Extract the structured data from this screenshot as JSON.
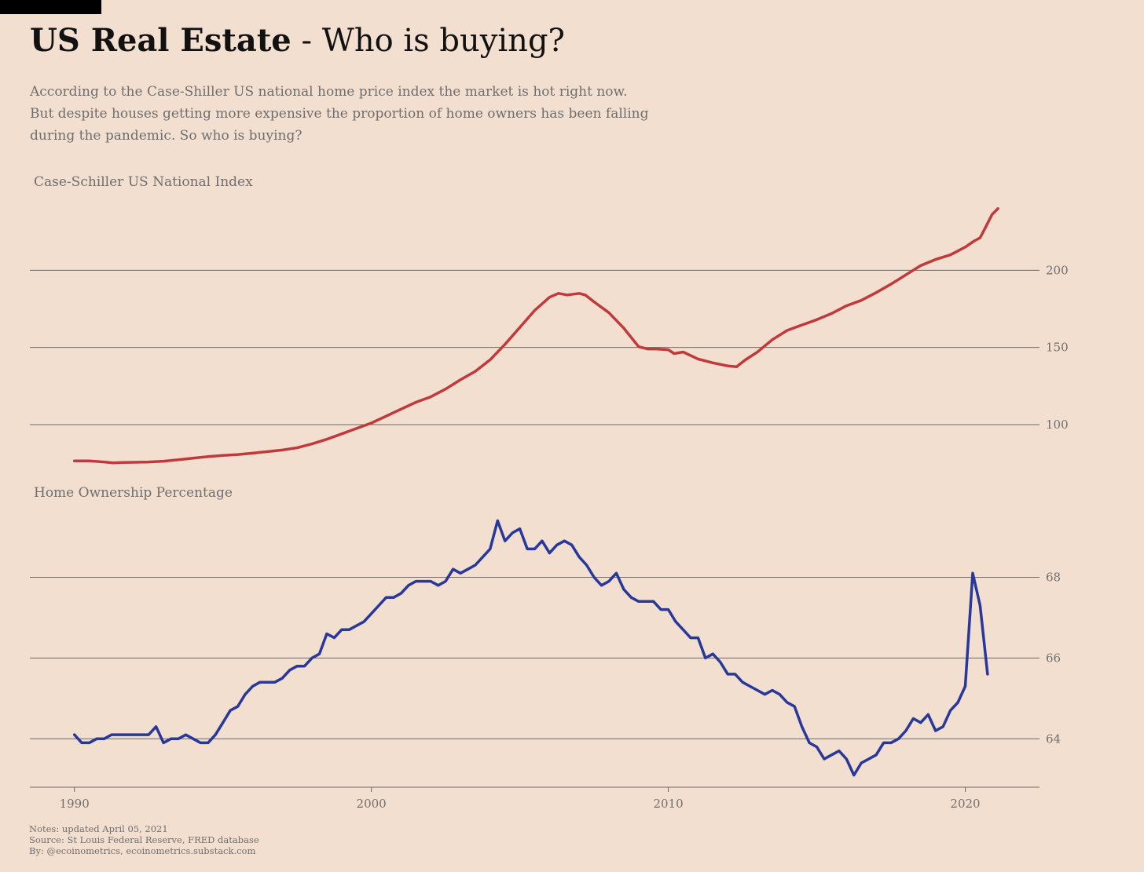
{
  "header": {
    "title_bold": "US Real Estate",
    "title_rest": " - Who is buying?",
    "subtitle_lines": [
      "According to the Case-Shiller US national home price index the market is hot right now.",
      "But despite houses getting more expensive the proportion of home owners has been falling",
      "during the pandemic. So who is buying?"
    ]
  },
  "chart_data": [
    {
      "type": "line",
      "title": "Case-Schiller US National Index",
      "xlim": [
        1988.5,
        2022.5
      ],
      "ylim": [
        71,
        250
      ],
      "yticks": [
        100,
        150,
        200
      ],
      "grid": true,
      "color": "#c0393b",
      "series": [
        {
          "x": [
            1990.0,
            1990.5,
            1991.0,
            1991.3,
            1991.6,
            1992.0,
            1992.5,
            1993.0,
            1993.5,
            1994.0,
            1994.5,
            1995.0,
            1995.5,
            1996.0,
            1996.5,
            1997.0,
            1997.5,
            1998.0,
            1998.5,
            1999.0,
            1999.5,
            2000.0,
            2000.5,
            2001.0,
            2001.5,
            2002.0,
            2002.5,
            2003.0,
            2003.5,
            2004.0,
            2004.5,
            2005.0,
            2005.5,
            2006.0,
            2006.3,
            2006.6,
            2007.0,
            2007.2,
            2007.5,
            2008.0,
            2008.5,
            2009.0,
            2009.3,
            2009.6,
            2010.0,
            2010.2,
            2010.5,
            2011.0,
            2011.5,
            2012.0,
            2012.3,
            2012.6,
            2013.0,
            2013.5,
            2014.0,
            2014.5,
            2015.0,
            2015.5,
            2016.0,
            2016.5,
            2017.0,
            2017.5,
            2018.0,
            2018.5,
            2019.0,
            2019.5,
            2020.0,
            2020.3,
            2020.5,
            2020.7,
            2020.9,
            2021.1
          ],
          "y": [
            76.5,
            76.5,
            75.8,
            75.2,
            75.5,
            75.6,
            75.8,
            76.3,
            77.2,
            78.2,
            79.3,
            80.0,
            80.6,
            81.5,
            82.5,
            83.5,
            85.0,
            87.5,
            90.5,
            94.0,
            97.5,
            101.0,
            105.5,
            110.0,
            114.5,
            118.0,
            123.0,
            129.0,
            134.5,
            142.0,
            152.0,
            163.0,
            174.0,
            182.5,
            185.0,
            184.0,
            185.0,
            184.0,
            179.5,
            172.5,
            162.5,
            150.5,
            149.0,
            149.0,
            148.5,
            146.0,
            147.0,
            142.5,
            140.0,
            138.0,
            137.5,
            142.0,
            147.0,
            155.0,
            161.0,
            164.5,
            168.0,
            172.0,
            177.0,
            180.5,
            185.5,
            191.0,
            197.0,
            203.0,
            207.0,
            210.0,
            215.0,
            219.0,
            221.0,
            228.5,
            236.0,
            240.0
          ]
        }
      ]
    },
    {
      "type": "line",
      "title": "Home Ownership Percentage",
      "xlim": [
        1988.5,
        2022.5
      ],
      "ylim": [
        62.8,
        69.7
      ],
      "yticks": [
        64,
        66,
        68
      ],
      "xticks": [
        1990,
        2000,
        2010,
        2020
      ],
      "grid": true,
      "color": "#28389a",
      "series": [
        {
          "x": [
            1990.0,
            1990.25,
            1990.5,
            1990.75,
            1991.0,
            1991.25,
            1991.5,
            1991.75,
            1992.0,
            1992.25,
            1992.5,
            1992.75,
            1993.0,
            1993.25,
            1993.5,
            1993.75,
            1994.0,
            1994.25,
            1994.5,
            1994.75,
            1995.0,
            1995.25,
            1995.5,
            1995.75,
            1996.0,
            1996.25,
            1996.5,
            1996.75,
            1997.0,
            1997.25,
            1997.5,
            1997.75,
            1998.0,
            1998.25,
            1998.5,
            1998.75,
            1999.0,
            1999.25,
            1999.5,
            1999.75,
            2000.0,
            2000.25,
            2000.5,
            2000.75,
            2001.0,
            2001.25,
            2001.5,
            2001.75,
            2002.0,
            2002.25,
            2002.5,
            2002.75,
            2003.0,
            2003.25,
            2003.5,
            2003.75,
            2004.0,
            2004.25,
            2004.5,
            2004.75,
            2005.0,
            2005.25,
            2005.5,
            2005.75,
            2006.0,
            2006.25,
            2006.5,
            2006.75,
            2007.0,
            2007.25,
            2007.5,
            2007.75,
            2008.0,
            2008.25,
            2008.5,
            2008.75,
            2009.0,
            2009.25,
            2009.5,
            2009.75,
            2010.0,
            2010.25,
            2010.5,
            2010.75,
            2011.0,
            2011.25,
            2011.5,
            2011.75,
            2012.0,
            2012.25,
            2012.5,
            2012.75,
            2013.0,
            2013.25,
            2013.5,
            2013.75,
            2014.0,
            2014.25,
            2014.5,
            2014.75,
            2015.0,
            2015.25,
            2015.5,
            2015.75,
            2016.0,
            2016.25,
            2016.5,
            2016.75,
            2017.0,
            2017.25,
            2017.5,
            2017.75,
            2018.0,
            2018.25,
            2018.5,
            2018.75,
            2019.0,
            2019.25,
            2019.5,
            2019.75,
            2020.0,
            2020.25,
            2020.5,
            2020.75
          ],
          "y": [
            64.1,
            63.9,
            63.9,
            64.0,
            64.0,
            64.1,
            64.1,
            64.1,
            64.1,
            64.1,
            64.1,
            64.3,
            63.9,
            64.0,
            64.0,
            64.1,
            64.0,
            63.9,
            63.9,
            64.1,
            64.4,
            64.7,
            64.8,
            65.1,
            65.3,
            65.4,
            65.4,
            65.4,
            65.5,
            65.7,
            65.8,
            65.8,
            66.0,
            66.1,
            66.6,
            66.5,
            66.7,
            66.7,
            66.8,
            66.9,
            67.1,
            67.3,
            67.5,
            67.5,
            67.6,
            67.8,
            67.9,
            67.9,
            67.9,
            67.8,
            67.9,
            68.2,
            68.1,
            68.2,
            68.3,
            68.5,
            68.7,
            69.4,
            68.9,
            69.1,
            69.2,
            68.7,
            68.7,
            68.9,
            68.6,
            68.8,
            68.9,
            68.8,
            68.5,
            68.3,
            68.0,
            67.8,
            67.9,
            68.1,
            67.7,
            67.5,
            67.4,
            67.4,
            67.4,
            67.2,
            67.2,
            66.9,
            66.7,
            66.5,
            66.5,
            66.0,
            66.1,
            65.9,
            65.6,
            65.6,
            65.4,
            65.3,
            65.2,
            65.1,
            65.2,
            65.1,
            64.9,
            64.8,
            64.3,
            63.9,
            63.8,
            63.5,
            63.6,
            63.7,
            63.5,
            63.1,
            63.4,
            63.5,
            63.6,
            63.9,
            63.9,
            64.0,
            64.2,
            64.5,
            64.4,
            64.6,
            64.2,
            64.3,
            64.7,
            64.9,
            65.3,
            68.1,
            67.3,
            65.6
          ]
        }
      ]
    }
  ],
  "notes": [
    "Notes: updated April 05, 2021",
    "Source: St Louis Federal Reserve, FRED database",
    "By: @ecoinometrics, ecoinometrics.substack.com"
  ]
}
